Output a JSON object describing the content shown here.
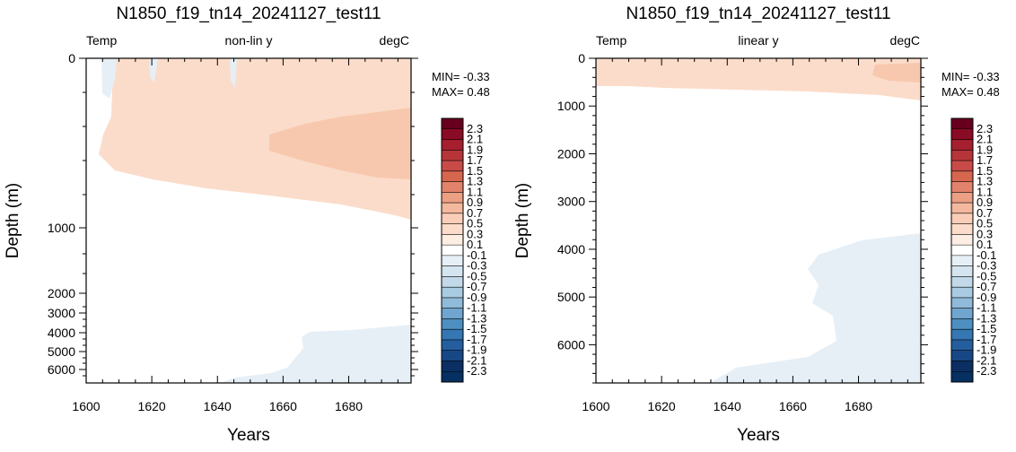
{
  "chart_data": [
    {
      "type": "heatmap",
      "title": "N1850_f19_tn14_20241127_test11",
      "left_label": "Temp",
      "center_label": "non-lin y",
      "right_label": "degC",
      "xlabel": "Years",
      "ylabel": "Depth (m)",
      "xlim": [
        1600,
        1699
      ],
      "x_ticks": [
        "1600",
        "1620",
        "1640",
        "1660",
        "1680"
      ],
      "y_scale": "non-linear",
      "y_ticks": [
        "0",
        "1000",
        "2000",
        "3000",
        "4000",
        "5000",
        "6000"
      ],
      "min_text": "MIN= -0.33",
      "max_text": "MAX=  0.48"
    },
    {
      "type": "heatmap",
      "title": "N1850_f19_tn14_20241127_test11",
      "left_label": "Temp",
      "center_label": "linear y",
      "right_label": "degC",
      "xlabel": "Years",
      "ylabel": "Depth (m)",
      "xlim": [
        1600,
        1699
      ],
      "x_ticks": [
        "1600",
        "1620",
        "1640",
        "1660",
        "1680"
      ],
      "y_scale": "linear",
      "y_ticks": [
        "0",
        "1000",
        "2000",
        "3000",
        "4000",
        "5000",
        "6000"
      ],
      "min_text": "MIN= -0.33",
      "max_text": "MAX=  0.48"
    }
  ],
  "colorbar": {
    "labels": [
      "2.3",
      "2.1",
      "1.9",
      "1.7",
      "1.5",
      "1.3",
      "1.1",
      "0.9",
      "0.7",
      "0.5",
      "0.3",
      "0.1",
      "-0.1",
      "-0.3",
      "-0.5",
      "-0.7",
      "-0.9",
      "-1.1",
      "-1.3",
      "-1.5",
      "-1.7",
      "-1.9",
      "-2.1",
      "-2.3"
    ],
    "colors": [
      "#67001f",
      "#8a0b25",
      "#a51f2e",
      "#b73539",
      "#c94b48",
      "#d7664f",
      "#e2826b",
      "#ec9f83",
      "#f4b89e",
      "#f9cdb8",
      "#fbdcca",
      "#fdede2",
      "#ffffff",
      "#e6eff6",
      "#d5e5f0",
      "#c2d9ea",
      "#a9cbe2",
      "#8fbad9",
      "#6fa5ce",
      "#4e8fc2",
      "#3577b3",
      "#245e9e",
      "#174885",
      "#0b2f63",
      "#053061"
    ]
  }
}
